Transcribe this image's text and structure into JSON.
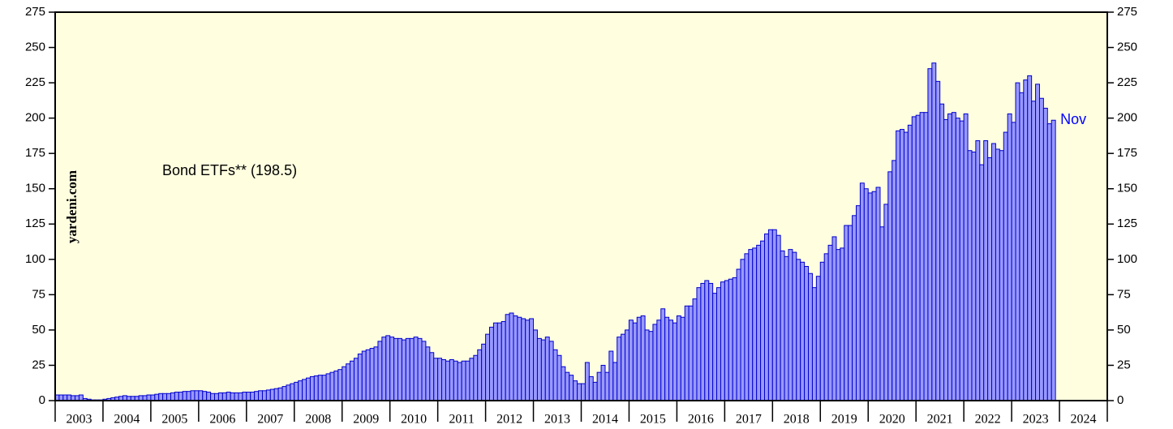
{
  "chart_data": {
    "type": "bar",
    "annotation": "Bond ETFs** (198.5)",
    "watermark": "yardeni.com",
    "end_label": "Nov",
    "x_labels": [
      "2003",
      "2004",
      "2005",
      "2006",
      "2007",
      "2008",
      "2009",
      "2010",
      "2011",
      "2012",
      "2013",
      "2014",
      "2015",
      "2016",
      "2017",
      "2018",
      "2019",
      "2020",
      "2021",
      "2022",
      "2023",
      "2024"
    ],
    "values": [
      4,
      4,
      4,
      4,
      3.5,
      3.5,
      4,
      1.5,
      1,
      0.5,
      0.5,
      0.5,
      1,
      1.5,
      2,
      2.5,
      3,
      3.5,
      3,
      3,
      3,
      3.5,
      3.5,
      4,
      4,
      4.5,
      5,
      5,
      5,
      5.5,
      6,
      6,
      6.5,
      6.5,
      7,
      7,
      7,
      6.5,
      6,
      5,
      5,
      5.5,
      5.5,
      6,
      5.5,
      5.5,
      5.5,
      6,
      6,
      6,
      6.5,
      7,
      7,
      7.5,
      8,
      8.5,
      9,
      10,
      11,
      12,
      13,
      14,
      15,
      16,
      17,
      17.5,
      18,
      18,
      19,
      20,
      21,
      22,
      24,
      26,
      28,
      30,
      33,
      35,
      36,
      37,
      38,
      42,
      45,
      46,
      45,
      44,
      44,
      43,
      44,
      44,
      45,
      44,
      42,
      38,
      34,
      30,
      30,
      29,
      28,
      29,
      28,
      27,
      28,
      28,
      30,
      32,
      36,
      40,
      47,
      52,
      55,
      55,
      56,
      61,
      62,
      60,
      59,
      58,
      57,
      58,
      50,
      44,
      43,
      45,
      42,
      36,
      32,
      24,
      20,
      18,
      14,
      12,
      12,
      27,
      17,
      13,
      20,
      25,
      20,
      35,
      27,
      45,
      47,
      50,
      57,
      55,
      59,
      60,
      50,
      49,
      54,
      57,
      65,
      59,
      57,
      55,
      60,
      59,
      67,
      67,
      72,
      80,
      83,
      85,
      83,
      76,
      80,
      84,
      85,
      86,
      87,
      93,
      100,
      104,
      107,
      108,
      110,
      113,
      118,
      121,
      121,
      117,
      106,
      102,
      107,
      105,
      100,
      98,
      95,
      90,
      80,
      88,
      98,
      104,
      110,
      116,
      107,
      108,
      124,
      124,
      131,
      138,
      154,
      150,
      147,
      148,
      151,
      123,
      139,
      162,
      170,
      191,
      192,
      190,
      195,
      201,
      202,
      204,
      204,
      235,
      239,
      226,
      210,
      199,
      203,
      204,
      200,
      198,
      203,
      177,
      176,
      184,
      167,
      184,
      172,
      182,
      178,
      177,
      190,
      203,
      197,
      225,
      218,
      227,
      230,
      212,
      224,
      214,
      207,
      196,
      198.5
    ],
    "ylim": [
      0,
      275
    ],
    "yticks": [
      0,
      25,
      50,
      75,
      100,
      125,
      150,
      175,
      200,
      225,
      250,
      275
    ],
    "color": "#9999ff",
    "edge_color": "#0000cc",
    "label_color": "#0000ff",
    "background": "#ffffe0"
  }
}
